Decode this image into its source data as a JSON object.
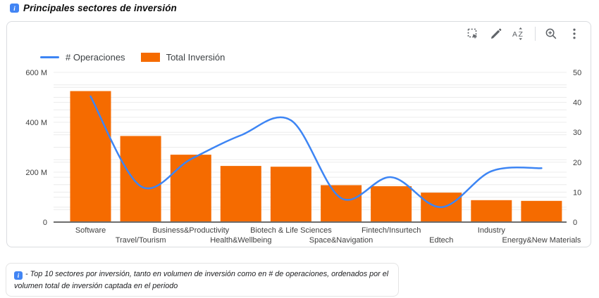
{
  "header": {
    "title": "Principales sectores de inversión"
  },
  "toolbar": {
    "icons": [
      "marquee-select-icon",
      "edit-pencil-icon",
      "sort-az-icon",
      "zoom-icon",
      "more-options-icon"
    ],
    "sort_letters": [
      "A",
      "Z"
    ],
    "icon_color": "#5f6368"
  },
  "legend": {
    "items": [
      {
        "label": "# Operaciones",
        "type": "line",
        "color": "#3d85f4"
      },
      {
        "label": "Total Inversión",
        "type": "bar",
        "color": "#f56b00"
      }
    ]
  },
  "chart_data": {
    "type": "combo-bar-line",
    "categories": [
      "Software",
      "Travel/Tourism",
      "Business&Productivity",
      "Health&Wellbeing",
      "Biotech & Life Sciences",
      "Space&Navigation",
      "Fintech/Insurtech",
      "Edtech",
      "Industry",
      "Energy&New Materials"
    ],
    "series": [
      {
        "name": "Total Inversión",
        "type": "bar",
        "axis": "left",
        "color": "#f56b00",
        "values": [
          525,
          345,
          270,
          225,
          222,
          148,
          144,
          118,
          88,
          85
        ]
      },
      {
        "name": "# Operaciones",
        "type": "line",
        "axis": "right",
        "color": "#3d85f4",
        "values": [
          42,
          12,
          21,
          29,
          34,
          8,
          15,
          5,
          17,
          18
        ]
      }
    ],
    "left_axis": {
      "title": "",
      "max": 600,
      "ticks": [
        "0",
        "200 M",
        "400 M",
        "600 M"
      ],
      "tick_values": [
        0,
        200,
        400,
        600
      ]
    },
    "right_axis": {
      "title": "",
      "max": 50,
      "ticks": [
        "0",
        "10",
        "20",
        "30",
        "40",
        "50"
      ],
      "tick_values": [
        0,
        10,
        20,
        30,
        40,
        50
      ]
    },
    "grid": true,
    "legend_position": "top-left"
  },
  "note": {
    "text": "- Top 10 sectores por inversión, tanto en volumen de inversión como en # de operaciones, ordenados por el volumen total de inversión captada en el periodo"
  },
  "colors": {
    "info_chip": "#4285f4",
    "card_border": "#dadce0",
    "grid_line": "#ececec",
    "zero_axis": "#6d6d6d",
    "axis_text": "#3f3f3f"
  }
}
